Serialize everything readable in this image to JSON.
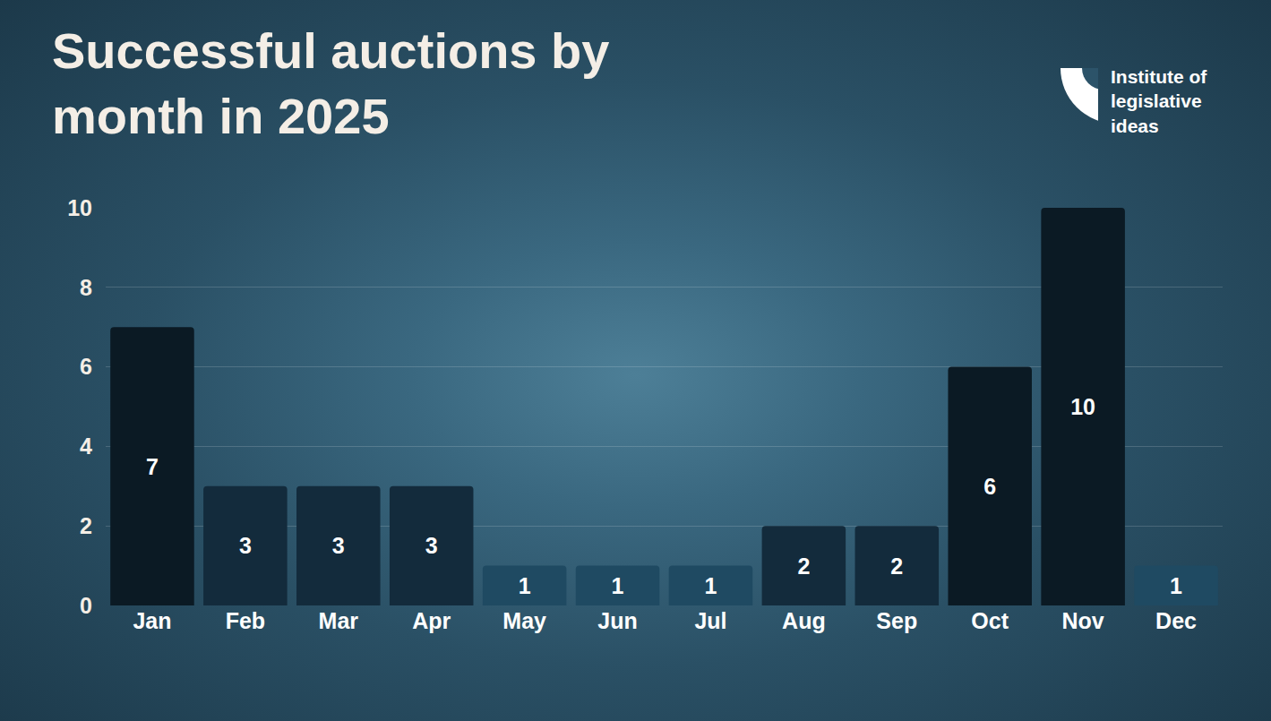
{
  "chart_data": {
    "type": "bar",
    "title": "Successful auctions by month in 2025",
    "annotations": [
      "Institute of legislative ideas"
    ],
    "categories": [
      "Jan",
      "Feb",
      "Mar",
      "Apr",
      "May",
      "Jun",
      "Jul",
      "Aug",
      "Sep",
      "Oct",
      "Nov",
      "Dec"
    ],
    "values": [
      7,
      3,
      3,
      3,
      1,
      1,
      1,
      2,
      2,
      6,
      10,
      1
    ],
    "colors": [
      "#0b1a24",
      "#132b3c",
      "#132b3c",
      "#132b3c",
      "#1f4a62",
      "#1f4a62",
      "#1f4a62",
      "#132b3c",
      "#132b3c",
      "#0b1a24",
      "#0b1a24",
      "#1f4a62"
    ],
    "ylim": [
      0,
      10
    ],
    "yticks": [
      0,
      2,
      4,
      6,
      8,
      10
    ],
    "grid": true,
    "data_labels": true
  }
}
